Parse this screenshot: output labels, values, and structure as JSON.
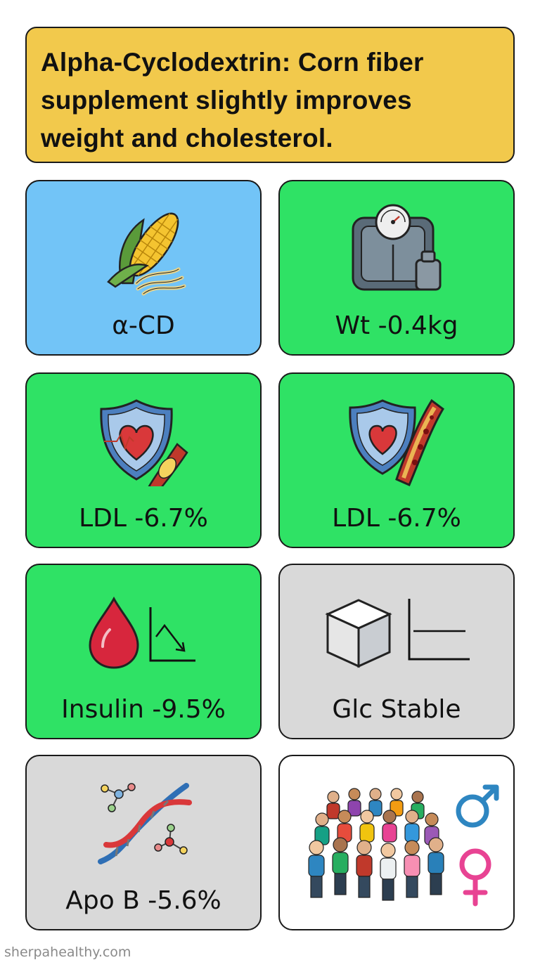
{
  "title": "Alpha-Cyclodextrin: Corn fiber supplement slightly improves weight and cholesterol.",
  "cards": [
    {
      "label": "α-CD",
      "icon": "corn-icon",
      "color": "#72c4f7"
    },
    {
      "label": "Wt -0.4kg",
      "icon": "scale-icon",
      "color": "#2fe265"
    },
    {
      "label": "LDL -6.7%",
      "icon": "heart-shield-icon",
      "color": "#2fe265"
    },
    {
      "label": "LDL -6.7%",
      "icon": "artery-shield-icon",
      "color": "#2fe265"
    },
    {
      "label": "Insulin -9.5%",
      "icon": "blood-drop-down-chart-icon",
      "color": "#2fe265"
    },
    {
      "label": "Glc Stable",
      "icon": "sugar-cube-flat-chart-icon",
      "color": "#d9d9d9"
    },
    {
      "label": "Apo B -5.6%",
      "icon": "dna-molecule-icon",
      "color": "#d9d9d9"
    },
    {
      "label": "",
      "icon": "crowd-gender-icon",
      "color": "#ffffff"
    }
  ],
  "footer": "sherpahealthy.com"
}
